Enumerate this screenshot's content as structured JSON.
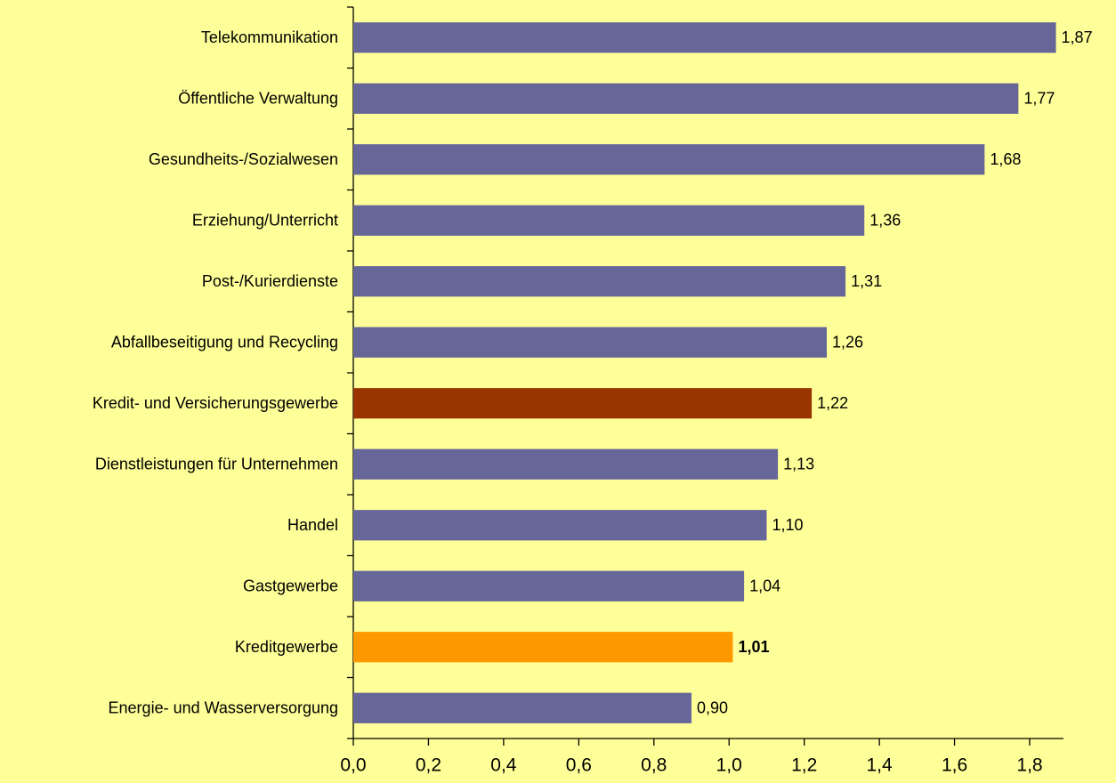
{
  "chart_data": {
    "type": "bar",
    "orientation": "horizontal",
    "categories": [
      "Telekommunikation",
      "Öffentliche Verwaltung",
      "Gesundheits-/Sozialwesen",
      "Erziehung/Unterricht",
      "Post-/Kurierdienste",
      "Abfallbeseitigung und Recycling",
      "Kredit- und Versicherungsgewerbe",
      "Dienstleistungen für Unternehmen",
      "Handel",
      "Gastgewerbe",
      "Kreditgewerbe",
      "Energie- und Wasserversorgung"
    ],
    "values": [
      1.87,
      1.77,
      1.68,
      1.36,
      1.31,
      1.26,
      1.22,
      1.13,
      1.1,
      1.04,
      1.01,
      0.9
    ],
    "value_labels": [
      "1,87",
      "1,77",
      "1,68",
      "1,36",
      "1,31",
      "1,26",
      "1,22",
      "1,13",
      "1,10",
      "1,04",
      "1,01",
      "0,90"
    ],
    "colors": [
      "#666699",
      "#666699",
      "#666699",
      "#666699",
      "#666699",
      "#666699",
      "#993300",
      "#666699",
      "#666699",
      "#666699",
      "#ff9900",
      "#666699"
    ],
    "xlim": [
      0,
      1.89
    ],
    "xticks": [
      {
        "value": 0,
        "label": "0,0"
      },
      {
        "value": 0.2,
        "label": "0,2"
      },
      {
        "value": 0.4,
        "label": "0,4"
      },
      {
        "value": 0.6,
        "label": "0,6"
      },
      {
        "value": 0.8,
        "label": "0,8"
      },
      {
        "value": 1.0,
        "label": "1,0"
      },
      {
        "value": 1.2,
        "label": "1,2"
      },
      {
        "value": 1.4,
        "label": "1,4"
      },
      {
        "value": 1.6,
        "label": "1,6"
      },
      {
        "value": 1.8,
        "label": "1,8"
      }
    ],
    "grid": false
  }
}
